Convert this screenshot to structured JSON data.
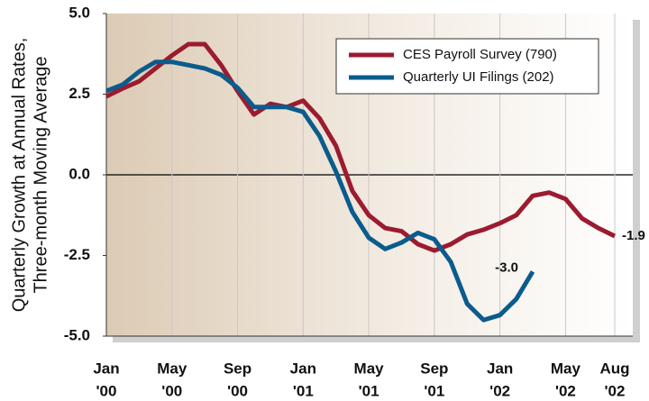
{
  "chart_data": {
    "type": "line",
    "y_label": [
      "Quarterly Growth at Annual Rates,",
      "Three-month Moving Average"
    ],
    "categories": [
      [
        "Jan",
        "'00"
      ],
      null,
      null,
      null,
      [
        "May",
        "'00"
      ],
      null,
      null,
      null,
      [
        "Sep",
        "'00"
      ],
      null,
      null,
      null,
      [
        "Jan",
        "'01"
      ],
      null,
      null,
      null,
      [
        "May",
        "'01"
      ],
      null,
      null,
      null,
      [
        "Sep",
        "'01"
      ],
      null,
      null,
      null,
      [
        "Jan",
        "'02"
      ],
      null,
      null,
      null,
      [
        "May",
        "'02"
      ],
      null,
      null,
      [
        "Aug",
        "'02"
      ]
    ],
    "series": [
      {
        "name": "CES Payroll Survey (790)",
        "color": "#9b1b30",
        "values": [
          2.43,
          2.68,
          2.9,
          3.3,
          3.7,
          4.05,
          4.05,
          3.4,
          2.6,
          1.87,
          2.2,
          2.1,
          2.3,
          1.75,
          0.9,
          -0.5,
          -1.25,
          -1.65,
          -1.75,
          -2.15,
          -2.35,
          -2.15,
          -1.85,
          -1.7,
          -1.5,
          -1.25,
          -0.65,
          -0.55,
          -0.75,
          -1.35,
          -1.65,
          -1.9
        ],
        "value_labels": [
          null,
          null,
          null,
          null,
          null,
          null,
          null,
          null,
          null,
          null,
          null,
          null,
          null,
          null,
          null,
          null,
          null,
          null,
          null,
          null,
          null,
          null,
          null,
          null,
          null,
          null,
          null,
          null,
          null,
          null,
          null,
          "-1.9"
        ]
      },
      {
        "name": "Quarterly UI Filings (202)",
        "color": "#0b5c8c",
        "values": [
          2.6,
          2.8,
          3.2,
          3.5,
          3.5,
          3.4,
          3.3,
          3.1,
          2.7,
          2.1,
          2.1,
          2.1,
          1.95,
          1.2,
          0.1,
          -1.15,
          -1.95,
          -2.3,
          -2.1,
          -1.8,
          -2.0,
          -2.7,
          -4.0,
          -4.5,
          -4.35,
          -3.85,
          -3.0,
          null,
          null,
          null,
          null,
          null
        ],
        "value_labels": [
          null,
          null,
          null,
          null,
          null,
          null,
          null,
          null,
          null,
          null,
          null,
          null,
          null,
          null,
          null,
          null,
          null,
          null,
          null,
          null,
          null,
          null,
          null,
          null,
          null,
          null,
          "-3.0",
          null,
          null,
          null,
          null,
          null
        ]
      }
    ],
    "ylim": [
      -5,
      5
    ],
    "yticks": [
      {
        "value": 5,
        "label": "5.0"
      },
      {
        "value": 2.5,
        "label": "2.5"
      },
      {
        "value": 0,
        "label": "0.0"
      },
      {
        "value": -2.5,
        "label": "-2.5"
      },
      {
        "value": -5,
        "label": "-5.0"
      }
    ],
    "zero_line": true,
    "grid": true
  }
}
